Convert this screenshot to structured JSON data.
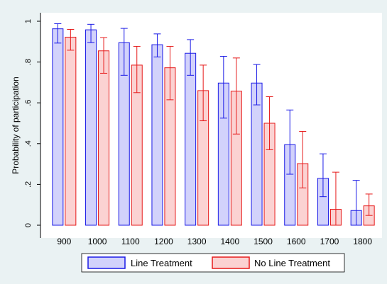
{
  "colors": {
    "outer_background": "#eaf2f3",
    "plot_background": "#ffffff",
    "line_treatment_stroke": "#1a1ae6",
    "line_treatment_fill": "#d2d2fb",
    "no_line_treatment_stroke": "#e61a1a",
    "no_line_treatment_fill": "#fbd2d2"
  },
  "chart_data": {
    "type": "bar",
    "ylabel": "Probability of participation",
    "xlabel": "",
    "ylim": [
      0,
      1
    ],
    "yticks": [
      0,
      0.2,
      0.4,
      0.6,
      0.8,
      1
    ],
    "ytick_labels": [
      "0",
      ".2",
      ".4",
      ".6",
      ".8",
      "1"
    ],
    "categories": [
      "900",
      "1000",
      "1100",
      "1200",
      "1300",
      "1400",
      "1500",
      "1600",
      "1700",
      "1800"
    ],
    "grid": false,
    "error_bars": true,
    "legend_position": "bottom",
    "series": [
      {
        "name": "Line Treatment",
        "values": [
          0.963,
          0.958,
          0.895,
          0.885,
          0.843,
          0.697,
          0.697,
          0.395,
          0.23,
          0.072
        ],
        "ci_low": [
          0.893,
          0.895,
          0.735,
          0.825,
          0.735,
          0.525,
          0.59,
          0.25,
          0.14,
          0.0
        ],
        "ci_high": [
          0.988,
          0.985,
          0.965,
          0.938,
          0.91,
          0.828,
          0.788,
          0.565,
          0.35,
          0.22
        ]
      },
      {
        "name": "No Line Treatment",
        "values": [
          0.922,
          0.855,
          0.785,
          0.772,
          0.66,
          0.657,
          0.5,
          0.302,
          0.078,
          0.095
        ],
        "ci_low": [
          0.858,
          0.745,
          0.65,
          0.615,
          0.512,
          0.447,
          0.37,
          0.183,
          0.0,
          0.048
        ],
        "ci_high": [
          0.96,
          0.92,
          0.877,
          0.877,
          0.785,
          0.82,
          0.63,
          0.46,
          0.26,
          0.153
        ]
      }
    ]
  }
}
